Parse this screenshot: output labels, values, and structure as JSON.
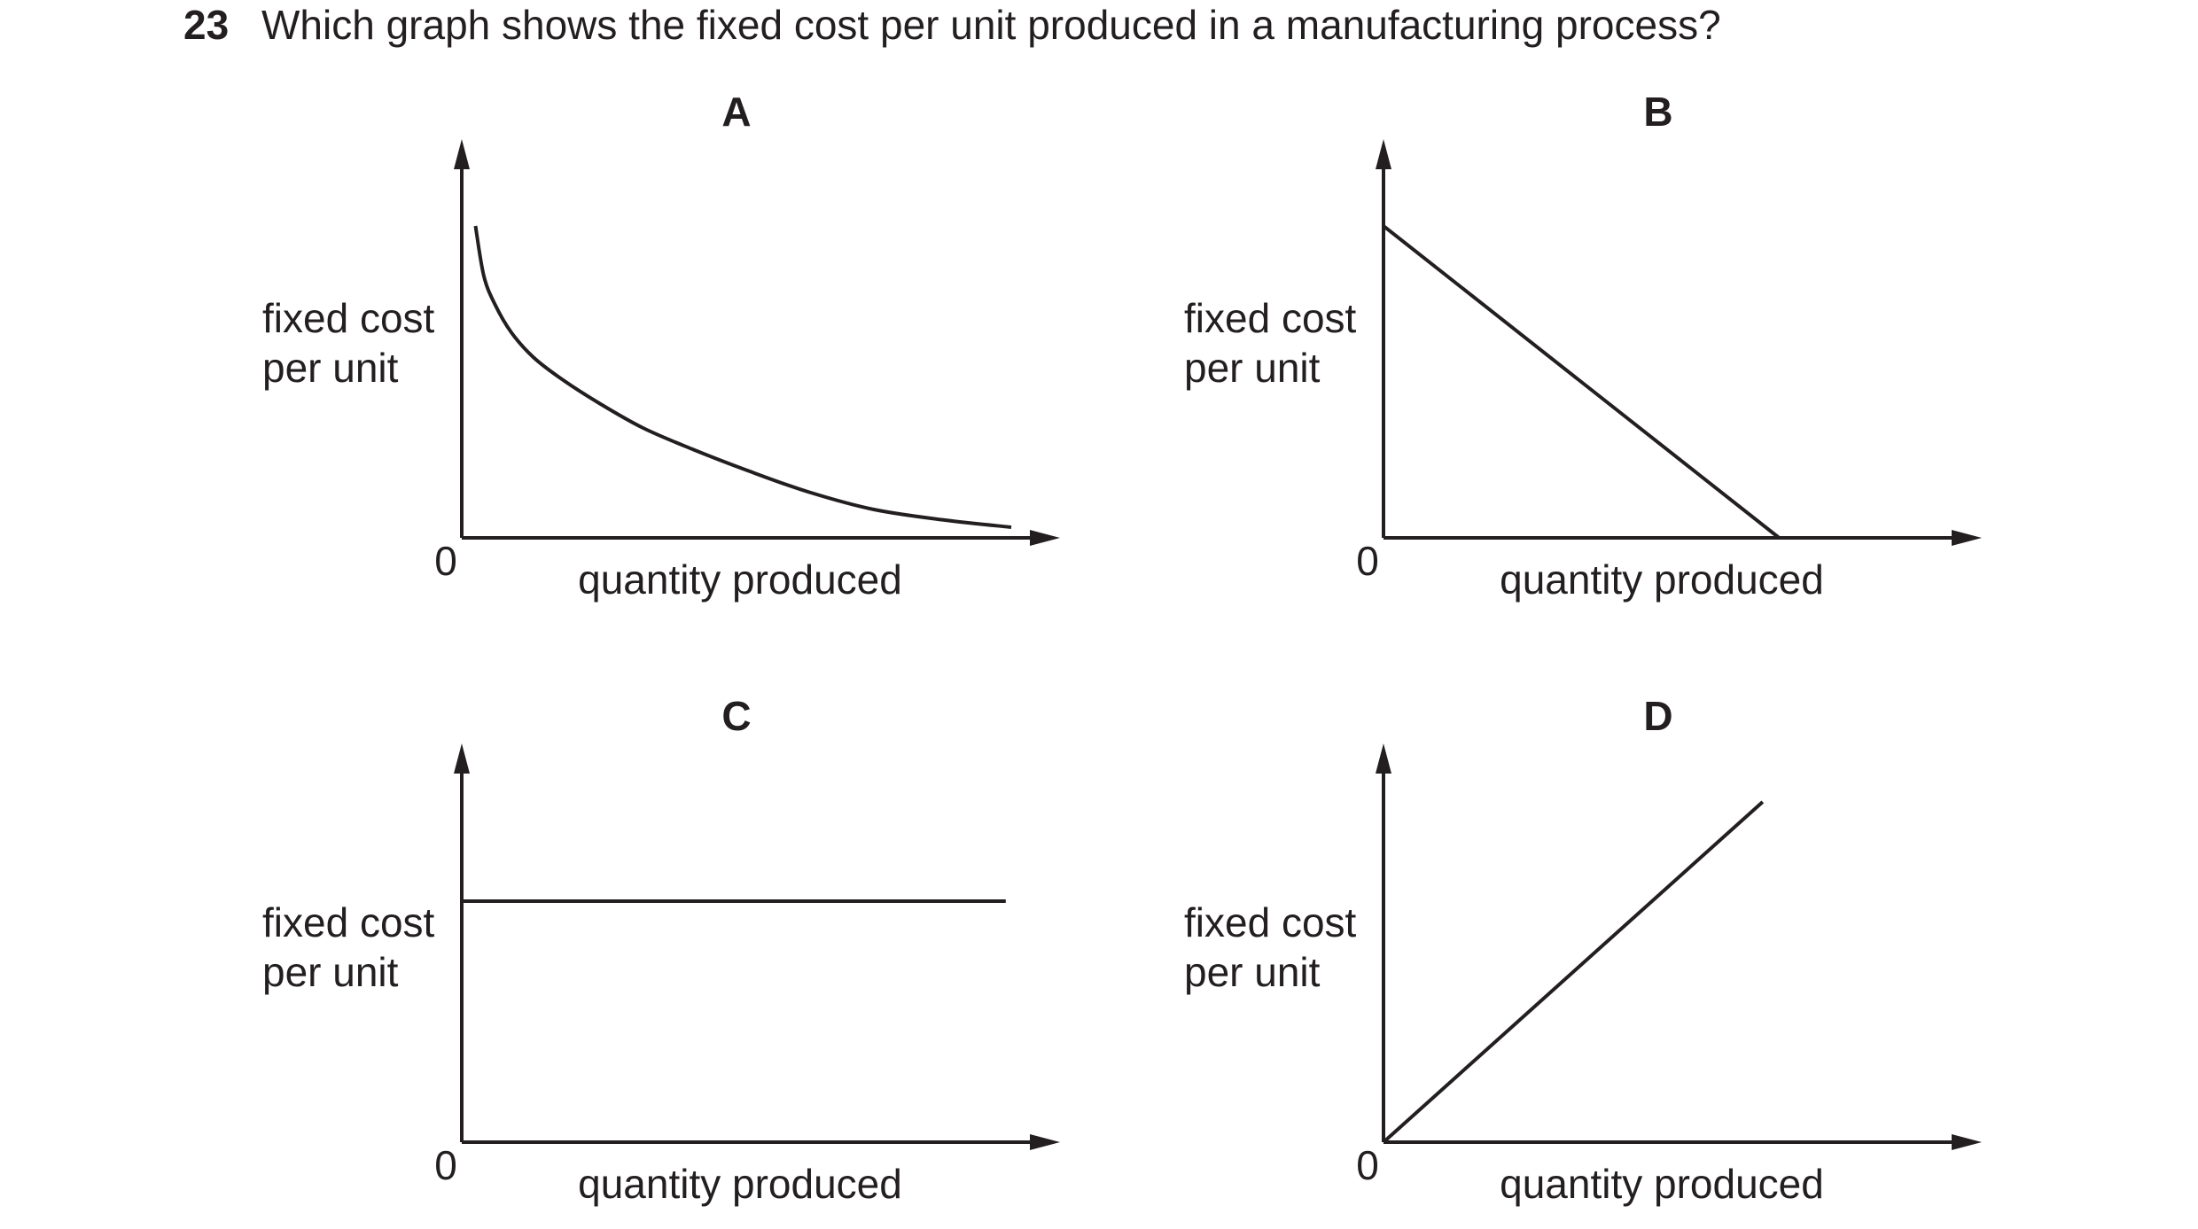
{
  "question": {
    "number": "23",
    "text": "Which graph shows the fixed cost per unit produced in a manufacturing process?"
  },
  "chart_data": [
    {
      "type": "line",
      "option": "A",
      "title": "A",
      "ylabel_lines": [
        "fixed cost",
        "per unit"
      ],
      "xlabel": "quantity produced",
      "origin_label": "0",
      "xlim": [
        0,
        100
      ],
      "ylim": [
        0,
        100
      ],
      "curve": "decreasing-hyperbola",
      "x": [
        2.5,
        4,
        6,
        9,
        13,
        18,
        25,
        33,
        42,
        52,
        63,
        75,
        88,
        100
      ],
      "y": [
        88,
        74,
        66,
        58,
        51,
        45,
        38,
        31,
        25,
        19,
        13,
        8,
        5,
        3
      ]
    },
    {
      "type": "line",
      "option": "B",
      "title": "B",
      "ylabel_lines": [
        "fixed cost",
        "per unit"
      ],
      "xlabel": "quantity produced",
      "origin_label": "0",
      "xlim": [
        0,
        100
      ],
      "ylim": [
        0,
        100
      ],
      "curve": "straight-line-decreasing",
      "x": [
        0,
        72
      ],
      "y": [
        88,
        0
      ]
    },
    {
      "type": "line",
      "option": "C",
      "title": "C",
      "ylabel_lines": [
        "fixed cost",
        "per unit"
      ],
      "xlabel": "quantity produced",
      "origin_label": "0",
      "xlim": [
        0,
        100
      ],
      "ylim": [
        0,
        100
      ],
      "curve": "horizontal-line",
      "x": [
        0,
        99
      ],
      "y": [
        68,
        68
      ]
    },
    {
      "type": "line",
      "option": "D",
      "title": "D",
      "ylabel_lines": [
        "fixed cost",
        "per unit"
      ],
      "xlabel": "quantity produced",
      "origin_label": "0",
      "xlim": [
        0,
        100
      ],
      "ylim": [
        0,
        100
      ],
      "curve": "straight-line-increasing",
      "x": [
        0,
        69
      ],
      "y": [
        0,
        96
      ]
    }
  ]
}
